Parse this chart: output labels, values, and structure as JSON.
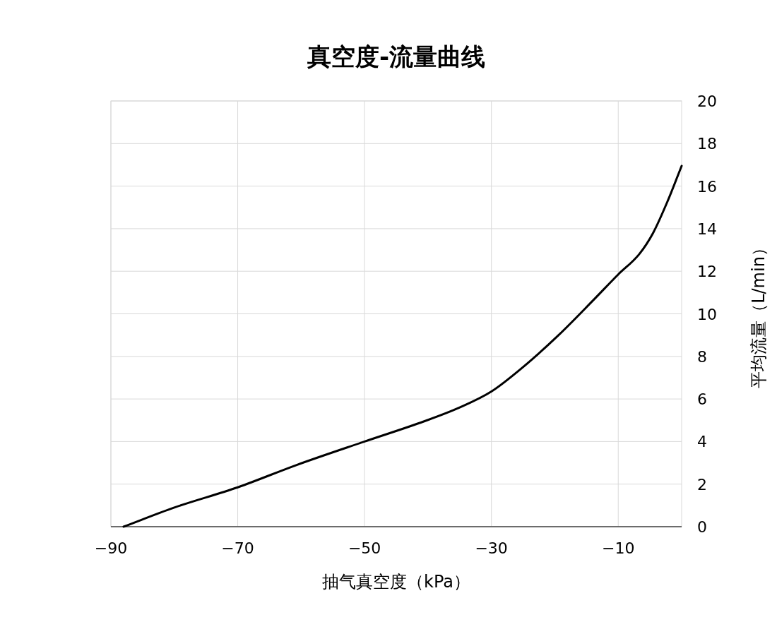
{
  "chart_data": {
    "type": "line",
    "title": "真空度-流量曲线",
    "xlabel": "抽气真空度（kPa）",
    "ylabel": "平均流量（L/min）",
    "x": [
      -88,
      -80,
      -70,
      -60.7,
      -50,
      -40.6,
      -35,
      -30,
      -25,
      -19.4,
      -13.9,
      -10,
      -6.7,
      -4.5,
      -2.2,
      0
    ],
    "series": [
      {
        "color": "#000000",
        "values": [
          0,
          0.9,
          1.85,
          2.9,
          4.0,
          4.95,
          5.6,
          6.35,
          7.5,
          9.0,
          10.65,
          11.85,
          12.8,
          13.8,
          15.3,
          16.95
        ]
      }
    ],
    "xlim": [
      -90,
      0
    ],
    "xticks": [
      -90,
      -70,
      -50,
      -30,
      -10
    ],
    "ylim": [
      0,
      20
    ],
    "yticks": [
      0,
      2,
      4,
      6,
      8,
      10,
      12,
      14,
      16,
      18,
      20
    ],
    "grid": true,
    "marker": "none",
    "line_style": "solid"
  }
}
